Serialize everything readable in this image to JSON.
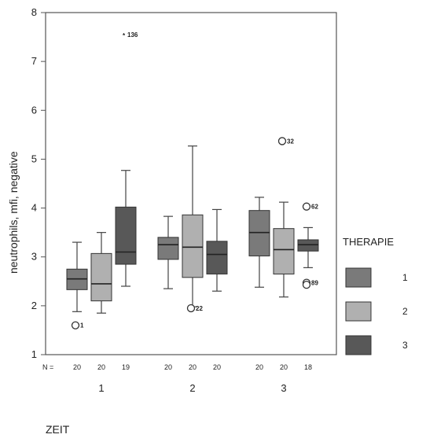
{
  "chart_data": {
    "type": "boxplot",
    "ylabel": "neutrophils, mfi, negative",
    "xlabel": "ZEIT",
    "ylim": [
      1,
      8
    ],
    "yticks": [
      1,
      2,
      3,
      4,
      5,
      6,
      7,
      8
    ],
    "groups": [
      "1",
      "2",
      "3"
    ],
    "n_prefix": "N =",
    "legend": {
      "title": "THERAPIE",
      "placement": "right",
      "entries": [
        {
          "label": "1",
          "color": "#7a7a7a"
        },
        {
          "label": "2",
          "color": "#b0b0b0"
        },
        {
          "label": "3",
          "color": "#585858"
        }
      ]
    },
    "boxes": [
      {
        "group": "1",
        "therapie": "1",
        "n": "20",
        "min": 1.88,
        "q1": 2.33,
        "median": 2.55,
        "q3": 2.75,
        "max": 3.3
      },
      {
        "group": "1",
        "therapie": "2",
        "n": "20",
        "min": 1.85,
        "q1": 2.1,
        "median": 2.45,
        "q3": 3.07,
        "max": 3.5
      },
      {
        "group": "1",
        "therapie": "3",
        "n": "19",
        "min": 2.4,
        "q1": 2.85,
        "median": 3.1,
        "q3": 4.02,
        "max": 4.77
      },
      {
        "group": "2",
        "therapie": "1",
        "n": "20",
        "min": 2.35,
        "q1": 2.95,
        "median": 3.25,
        "q3": 3.4,
        "max": 3.83
      },
      {
        "group": "2",
        "therapie": "2",
        "n": "20",
        "min": 1.98,
        "q1": 2.58,
        "median": 3.2,
        "q3": 3.86,
        "max": 5.27
      },
      {
        "group": "2",
        "therapie": "3",
        "n": "20",
        "min": 2.3,
        "q1": 2.65,
        "median": 3.05,
        "q3": 3.32,
        "max": 3.97
      },
      {
        "group": "3",
        "therapie": "1",
        "n": "20",
        "min": 2.38,
        "q1": 3.02,
        "median": 3.5,
        "q3": 3.95,
        "max": 4.22
      },
      {
        "group": "3",
        "therapie": "2",
        "n": "20",
        "min": 2.18,
        "q1": 2.65,
        "median": 3.15,
        "q3": 3.58,
        "max": 4.12
      },
      {
        "group": "3",
        "therapie": "3",
        "n": "18",
        "min": 2.78,
        "q1": 3.12,
        "median": 3.25,
        "q3": 3.35,
        "max": 3.6
      }
    ],
    "outliers": [
      {
        "group": "1",
        "therapie": "1",
        "value": 1.6,
        "label": "1",
        "symbol": "circle"
      },
      {
        "group": "1",
        "therapie": "3",
        "value": 7.55,
        "label": "136",
        "symbol": "star"
      },
      {
        "group": "2",
        "therapie": "2",
        "value": 1.95,
        "label": "22",
        "symbol": "circle"
      },
      {
        "group": "3",
        "therapie": "2",
        "value": 5.37,
        "label": "32",
        "symbol": "circle"
      },
      {
        "group": "3",
        "therapie": "3",
        "value": 4.03,
        "label": "62",
        "symbol": "circle"
      },
      {
        "group": "3",
        "therapie": "3",
        "value": 2.47,
        "label": "89",
        "symbol": "circle"
      },
      {
        "group": "3",
        "therapie": "3",
        "value": 2.43,
        "label": "",
        "symbol": "circle"
      }
    ]
  }
}
